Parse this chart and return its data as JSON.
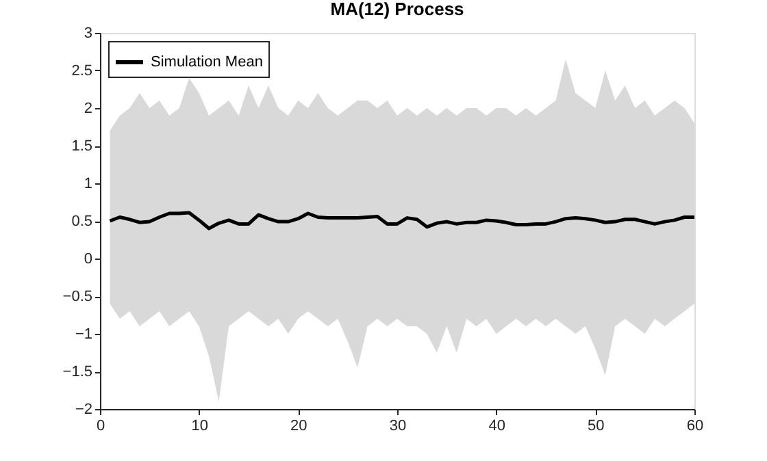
{
  "chart_data": {
    "type": "line",
    "title": "MA(12) Process",
    "x": [
      1,
      2,
      3,
      4,
      5,
      6,
      7,
      8,
      9,
      10,
      11,
      12,
      13,
      14,
      15,
      16,
      17,
      18,
      19,
      20,
      21,
      22,
      23,
      24,
      25,
      26,
      27,
      28,
      29,
      30,
      31,
      32,
      33,
      34,
      35,
      36,
      37,
      38,
      39,
      40,
      41,
      42,
      43,
      44,
      45,
      46,
      47,
      48,
      49,
      50,
      51,
      52,
      53,
      54,
      55,
      56,
      57,
      58,
      59,
      60
    ],
    "series": [
      {
        "name": "Simulation Mean",
        "color": "#000000",
        "values": [
          0.5,
          0.55,
          0.52,
          0.48,
          0.49,
          0.55,
          0.6,
          0.6,
          0.61,
          0.51,
          0.4,
          0.47,
          0.51,
          0.46,
          0.46,
          0.58,
          0.53,
          0.49,
          0.49,
          0.53,
          0.6,
          0.55,
          0.54,
          0.54,
          0.54,
          0.54,
          0.55,
          0.56,
          0.46,
          0.46,
          0.54,
          0.52,
          0.42,
          0.47,
          0.49,
          0.46,
          0.48,
          0.48,
          0.51,
          0.5,
          0.48,
          0.45,
          0.45,
          0.46,
          0.46,
          0.49,
          0.53,
          0.54,
          0.53,
          0.51,
          0.48,
          0.49,
          0.52,
          0.52,
          0.49,
          0.46,
          0.49,
          0.51,
          0.55,
          0.55
        ],
        "lower": [
          -0.6,
          -0.8,
          -0.7,
          -0.9,
          -0.8,
          -0.7,
          -0.9,
          -0.8,
          -0.7,
          -0.9,
          -1.3,
          -1.9,
          -0.9,
          -0.8,
          -0.7,
          -0.8,
          -0.9,
          -0.8,
          -1.0,
          -0.8,
          -0.7,
          -0.8,
          -0.9,
          -0.8,
          -1.1,
          -1.45,
          -0.9,
          -0.8,
          -0.9,
          -0.8,
          -0.9,
          -0.9,
          -1.0,
          -1.25,
          -0.9,
          -1.25,
          -0.8,
          -0.9,
          -0.8,
          -1.0,
          -0.9,
          -0.8,
          -0.9,
          -0.8,
          -0.9,
          -0.8,
          -0.9,
          -1.0,
          -0.9,
          -1.2,
          -1.55,
          -0.9,
          -0.8,
          -0.9,
          -1.0,
          -0.8,
          -0.9,
          -0.8,
          -0.7,
          -0.6
        ],
        "upper": [
          1.7,
          1.9,
          2.0,
          2.2,
          2.0,
          2.1,
          1.9,
          2.0,
          2.4,
          2.2,
          1.9,
          2.0,
          2.1,
          1.9,
          2.3,
          2.0,
          2.3,
          2.0,
          1.9,
          2.1,
          2.0,
          2.2,
          2.0,
          1.9,
          2.0,
          2.1,
          2.1,
          2.0,
          2.1,
          1.9,
          2.0,
          1.9,
          2.0,
          1.9,
          2.0,
          1.9,
          2.0,
          2.0,
          1.9,
          2.0,
          2.0,
          1.9,
          2.0,
          1.9,
          2.0,
          2.1,
          2.65,
          2.2,
          2.1,
          2.0,
          2.5,
          2.1,
          2.3,
          2.0,
          2.1,
          1.9,
          2.0,
          2.1,
          2.0,
          1.8
        ]
      }
    ],
    "xlim": [
      0,
      60
    ],
    "xticks": [
      0,
      10,
      20,
      30,
      40,
      50,
      60
    ],
    "ylim": [
      -2,
      3
    ],
    "yticks": [
      -2,
      -1.5,
      -1,
      -0.5,
      0,
      0.5,
      1,
      1.5,
      2,
      2.5,
      3
    ],
    "legend": "top left",
    "marker": "none",
    "line_style": "solid",
    "grid": false
  }
}
